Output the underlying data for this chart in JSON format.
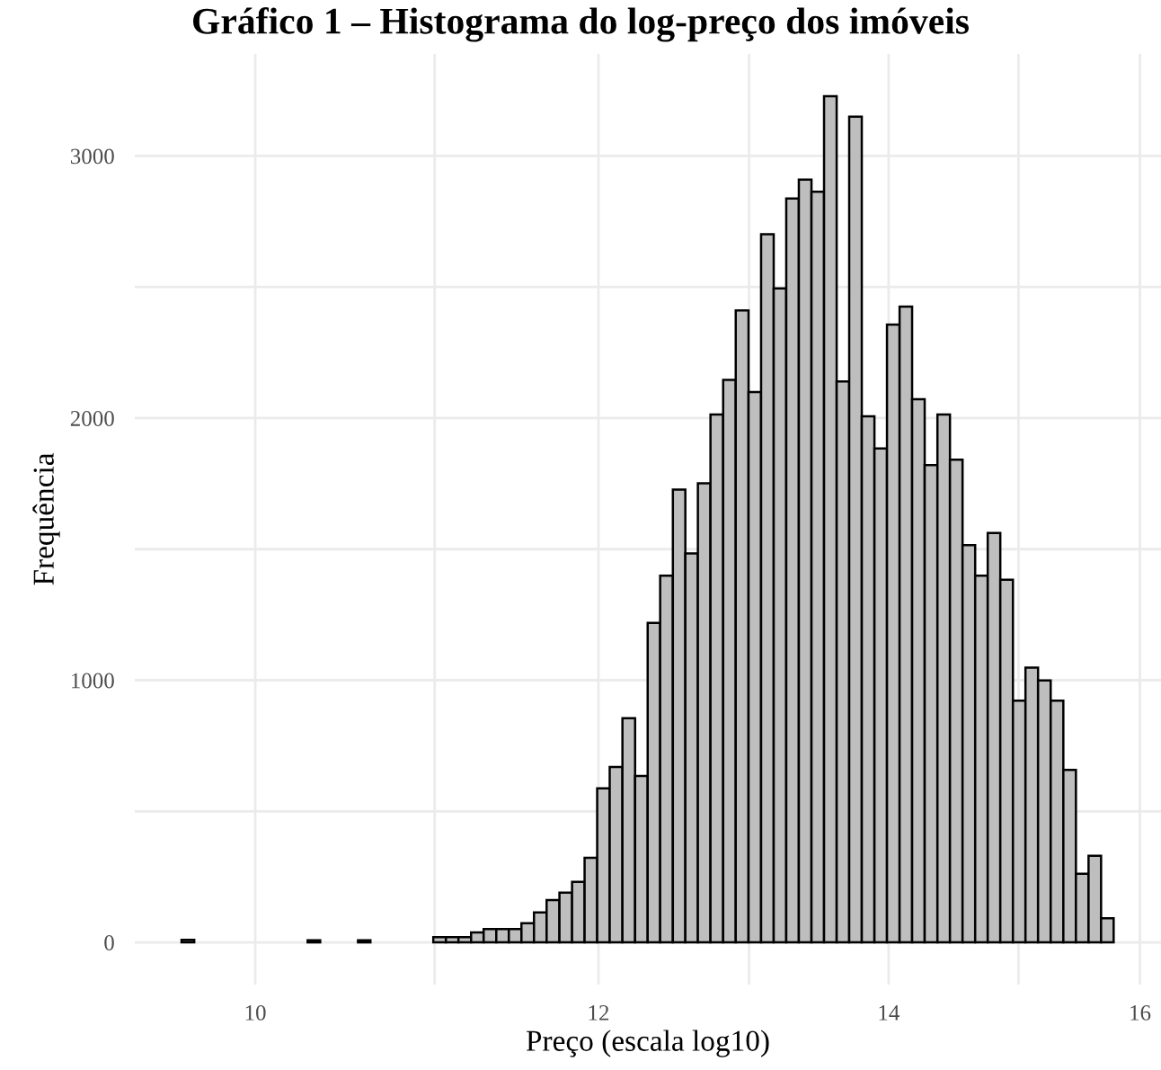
{
  "chart_data": {
    "type": "histogram",
    "title": "Gráfico 1 – Histograma do log-preço dos imóveis",
    "xlabel": "Preço (escala log10)",
    "ylabel": "Frequência",
    "log": "x",
    "bins": [
      9.616,
      9.681,
      9.746,
      9.811,
      9.877,
      9.943,
      10.01,
      10.077,
      10.145,
      10.213,
      10.282,
      10.351,
      10.42,
      10.49,
      10.561,
      10.631,
      10.702,
      10.774,
      10.846,
      10.919,
      10.992,
      11.066,
      11.14,
      11.215,
      11.29,
      11.366,
      11.442,
      11.519,
      11.596,
      11.674,
      11.754,
      11.833,
      11.912,
      11.992,
      12.072,
      12.154,
      12.236,
      12.318,
      12.4,
      12.484,
      12.567,
      12.651,
      12.736,
      12.822,
      12.908,
      12.996,
      13.083,
      13.171,
      13.259,
      13.348,
      13.438,
      13.528,
      13.619,
      13.71,
      13.802,
      13.895,
      13.988,
      14.082,
      14.176,
      14.271,
      14.368,
      14.464,
      14.561,
      14.659,
      14.757,
      14.856,
      14.956,
      15.056,
      15.157,
      15.259,
      15.362,
      15.465,
      15.569,
      15.673,
      15.778
    ],
    "values": [
      10,
      0,
      0,
      0,
      0,
      0,
      0,
      0,
      0,
      0,
      8,
      0,
      0,
      0,
      8,
      0,
      0,
      0,
      0,
      0,
      20,
      20,
      20,
      38,
      51,
      51,
      51,
      73,
      114,
      161,
      190,
      231,
      323,
      588,
      669,
      855,
      635,
      1219,
      1399,
      1727,
      1484,
      1751,
      2014,
      2146,
      2411,
      2099,
      2701,
      2495,
      2838,
      2910,
      2863,
      3228,
      2140,
      3150,
      2007,
      1884,
      2357,
      2425,
      2072,
      1821,
      2014,
      1841,
      1515,
      1399,
      1562,
      1383,
      922,
      1048,
      999,
      922,
      658,
      262,
      330,
      92
    ],
    "color": "#bebebe",
    "xlim": [
      9.38,
      16.18
    ],
    "ylim": [
      -161,
      3389
    ],
    "xticks": [
      10,
      {
        "value": 11,
        "label": null
      },
      12,
      {
        "value": 13,
        "label": null
      },
      14,
      {
        "value": 15,
        "label": null
      },
      16
    ],
    "yticks": [
      0,
      {
        "value": 500,
        "label": null
      },
      1000,
      {
        "value": 1500,
        "label": null
      },
      2000,
      {
        "value": 2500,
        "label": null
      },
      3000
    ],
    "grid": true
  }
}
